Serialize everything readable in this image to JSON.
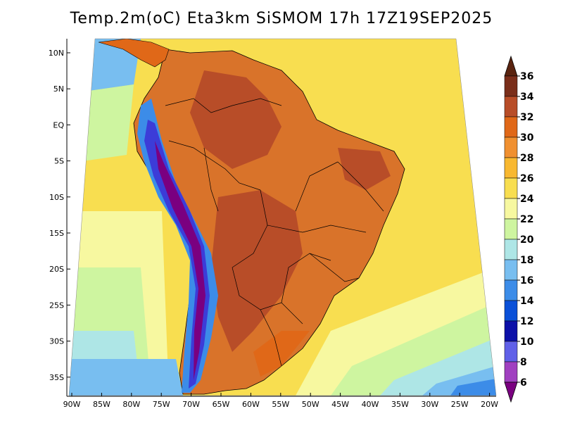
{
  "title": "Temp.2m(oC) Eta3km SiSMOM 17h 17Z19SEP2025",
  "axes": {
    "lat_labels": [
      "10N",
      "5N",
      "EQ",
      "5S",
      "10S",
      "15S",
      "20S",
      "25S",
      "30S",
      "35S"
    ],
    "lon_labels": [
      "90W",
      "85W",
      "80W",
      "75W",
      "70W",
      "65W",
      "60W",
      "55W",
      "50W",
      "45W",
      "40W",
      "35W",
      "30W",
      "25W",
      "20W"
    ],
    "lat_range": [
      12,
      -38.2
    ],
    "lon_range": [
      -91,
      -20
    ]
  },
  "colorbar": {
    "levels": [
      "6",
      "8",
      "10",
      "12",
      "14",
      "16",
      "18",
      "20",
      "22",
      "24",
      "26",
      "28",
      "30",
      "32",
      "34",
      "36"
    ],
    "colors": [
      "#7a0080",
      "#a040c0",
      "#6060e8",
      "#0c10a8",
      "#0a50d8",
      "#3c8ce8",
      "#78bef0",
      "#aee6e6",
      "#cef5a0",
      "#f7f8a0",
      "#f8de50",
      "#f8b830",
      "#f09030",
      "#e06818",
      "#b84d28",
      "#7a2e1a",
      "#5a2410"
    ]
  },
  "colors": {
    "ocean_warm": "#f8de50",
    "ocean_mid": "#f7f8a0",
    "ocean_cool": "#aee6e6",
    "land_hot": "#d9732a",
    "land_very_hot": "#b84d28",
    "andes_cold": "#3c3cd8",
    "border": "#000000"
  }
}
